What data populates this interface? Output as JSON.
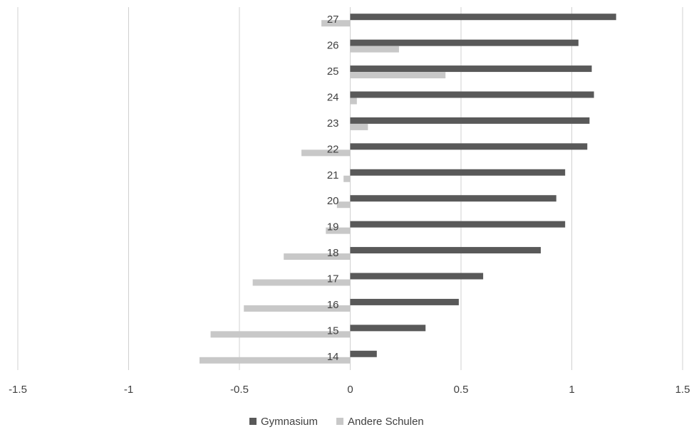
{
  "chart_data": {
    "type": "hbar",
    "categories": [
      "14",
      "15",
      "16",
      "17",
      "18",
      "19",
      "20",
      "21",
      "22",
      "23",
      "24",
      "25",
      "26",
      "27"
    ],
    "series": [
      {
        "name": "Gymnasium",
        "color": "#595959",
        "values": [
          0.12,
          0.34,
          0.49,
          0.6,
          0.86,
          0.97,
          0.93,
          0.97,
          1.07,
          1.08,
          1.1,
          1.09,
          1.03,
          1.2
        ]
      },
      {
        "name": "Andere Schulen",
        "color": "#c8c8c8",
        "values": [
          -0.68,
          -0.63,
          -0.48,
          -0.44,
          -0.3,
          -0.11,
          -0.06,
          -0.03,
          -0.22,
          0.08,
          0.03,
          0.43,
          0.22,
          -0.13
        ]
      }
    ],
    "xlim": [
      -1.5,
      1.5
    ],
    "xticks": [
      -1.5,
      -1,
      -0.5,
      0,
      0.5,
      1,
      1.5
    ],
    "grid": true,
    "legend": "bottom"
  }
}
